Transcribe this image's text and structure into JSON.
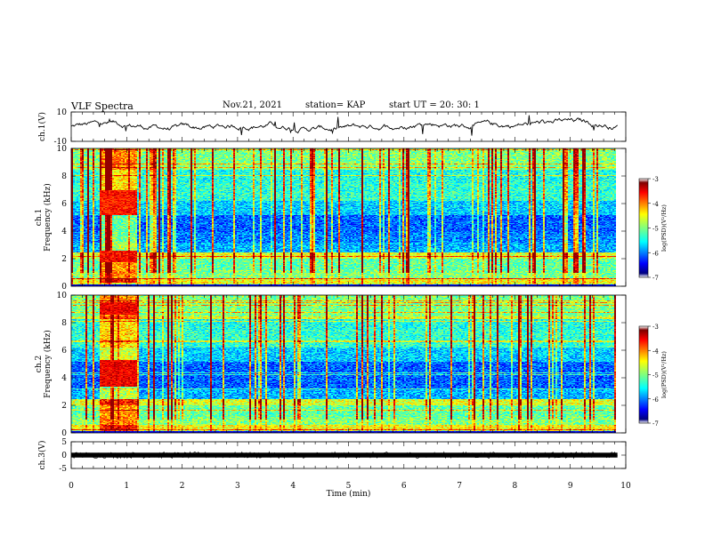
{
  "header": {
    "title": "VLF Spectra",
    "date": "Nov.21, 2021",
    "station": "station= KAP",
    "start": "start  UT =   20: 30: 1"
  },
  "chart_data": [
    {
      "type": "line",
      "panel": "ch1-waveform",
      "ylabel": "ch.1(V)",
      "ylim": [
        -10,
        10
      ],
      "yticks": [
        "10",
        "-10"
      ],
      "xlim": [
        0,
        10
      ],
      "description_series": "noisy waveform around -2 to 3 V"
    },
    {
      "type": "heatmap",
      "panel": "ch1-spectrogram",
      "ylabel": "ch.1\nFrequency (kHz)",
      "ylim": [
        0,
        10
      ],
      "yticks": [
        "0",
        "2",
        "4",
        "6",
        "8",
        "10"
      ],
      "xlim": [
        0,
        10
      ],
      "colorbar": {
        "label": "log(PSD)(V²/Hz)",
        "range": [
          -7,
          -3
        ],
        "ticks": [
          "-3",
          "-4",
          "-5",
          "-6",
          "-7"
        ]
      }
    },
    {
      "type": "heatmap",
      "panel": "ch2-spectrogram",
      "ylabel": "ch.2\nFrequency (kHz)",
      "ylim": [
        0,
        10
      ],
      "yticks": [
        "0",
        "2",
        "4",
        "6",
        "8",
        "10"
      ],
      "xlim": [
        0,
        10
      ],
      "colorbar": {
        "label": "log(PSD)(V²/Hz)",
        "range": [
          -7,
          -3
        ],
        "ticks": [
          "-3",
          "-4",
          "-5",
          "-6",
          "-7"
        ]
      }
    },
    {
      "type": "line",
      "panel": "ch3-waveform",
      "ylabel": "ch.3(V)",
      "ylim": [
        -5,
        5
      ],
      "yticks": [
        "5",
        "0",
        "-5"
      ],
      "xlim": [
        0,
        10
      ],
      "xlabel": "Time  (min)",
      "xticks": [
        "0",
        "1",
        "2",
        "3",
        "4",
        "5",
        "6",
        "7",
        "8",
        "9",
        "10"
      ]
    }
  ]
}
